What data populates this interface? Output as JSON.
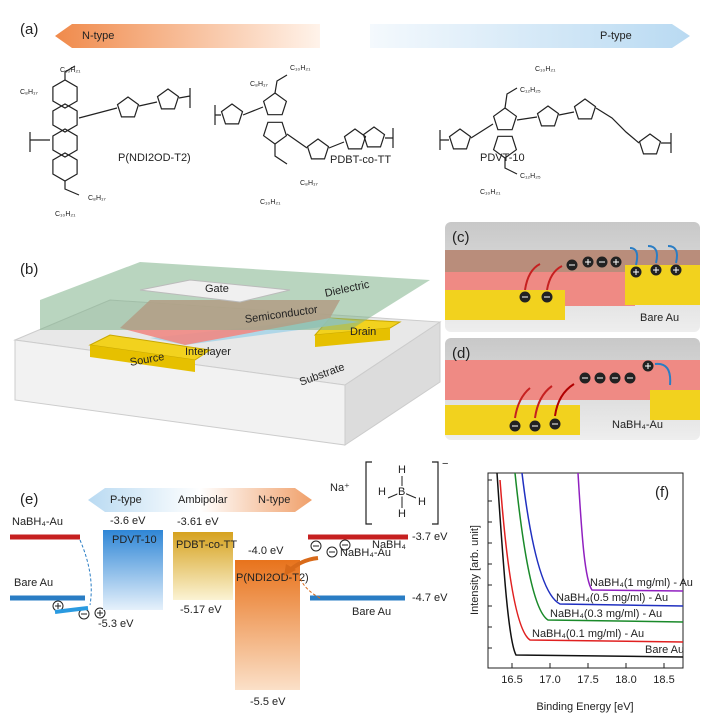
{
  "panel_a": {
    "label": "(a)",
    "n_type": "N-type",
    "p_type": "P-type",
    "molecules": [
      {
        "name": "P(NDI2OD-T2)",
        "side_chains": [
          "C₁₀H₂₁",
          "C₈H₁₇",
          "C₈H₁₇",
          "C₁₀H₂₁"
        ]
      },
      {
        "name": "PDBT-co-TT",
        "side_chains": [
          "C₁₀H₂₁",
          "C₈H₁₇",
          "C₈H₁₇",
          "C₁₀H₂₁"
        ]
      },
      {
        "name": "PDVT-10",
        "side_chains": [
          "C₁₀H₂₁",
          "C₁₂H₂₅",
          "C₁₂H₂₅",
          "C₁₀H₂₁"
        ]
      }
    ]
  },
  "panel_b": {
    "label": "(b)",
    "layers": [
      "Gate",
      "Dielectric",
      "Semiconductor",
      "Interlayer",
      "Source",
      "Drain",
      "Substrate"
    ]
  },
  "panel_c": {
    "label": "(c)",
    "caption": "Bare Au"
  },
  "panel_d": {
    "label": "(d)",
    "caption": "NaBH₄-Au"
  },
  "panel_e": {
    "label": "(e)",
    "arrow": [
      "P-type",
      "Ambipolar",
      "N-type"
    ],
    "salt": {
      "cation": "Na⁺",
      "center": "B",
      "hydrogens": [
        "H",
        "H",
        "H",
        "H"
      ],
      "charge": "−",
      "name": "NaBH₄"
    },
    "materials": [
      {
        "name": "PDVT-10",
        "lumo": "-3.6 eV",
        "homo": "-5.3 eV"
      },
      {
        "name": "PDBT-co-TT",
        "lumo": "-3.61 eV",
        "homo": "-5.17 eV"
      },
      {
        "name": "P(NDI2OD-T2)",
        "lumo": "-4.0 eV",
        "homo": "-5.5 eV"
      }
    ],
    "left_electrodes": [
      "NaBH₄-Au",
      "Bare Au"
    ],
    "right_electrodes": [
      {
        "name": "NaBH₄-Au",
        "level": "-3.7 eV"
      },
      {
        "name": "Bare Au",
        "level": "-4.7 eV"
      }
    ]
  },
  "panel_f": {
    "label": "(f)",
    "y_label": "Intensity [arb. unit]",
    "x_label": "Binding Energy [eV]",
    "x_ticks": [
      "16.5",
      "17.0",
      "17.5",
      "18.0",
      "18.5"
    ],
    "curves": [
      "NaBH₄(1 mg/ml) - Au",
      "NaBH₄(0.5 mg/ml) - Au",
      "NaBH₄(0.3 mg/ml) - Au",
      "NaBH₄(0.1 mg/ml) - Au",
      "Bare Au"
    ]
  }
}
